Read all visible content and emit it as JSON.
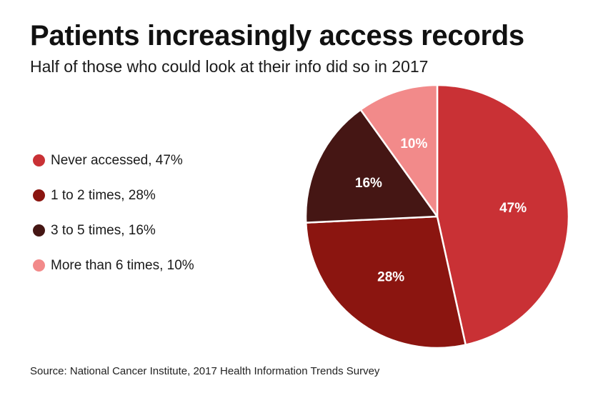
{
  "title": "Patients increasingly access records",
  "subtitle": "Half of those who could look at their info did so in 2017",
  "source": "Source: National Cancer Institute, 2017 Health Information Trends Survey",
  "chart_data": {
    "type": "pie",
    "title": "Patients increasingly access records",
    "subtitle": "Half of those who could look at their info did so in 2017",
    "legend_position": "left",
    "slices": [
      {
        "name": "never-accessed",
        "legend": "Never accessed, 47%",
        "label": "47%",
        "value": 47,
        "color": "#c93135"
      },
      {
        "name": "1-to-2-times",
        "legend": "1 to 2 times, 28%",
        "label": "28%",
        "value": 28,
        "color": "#8b1510"
      },
      {
        "name": "3-to-5-times",
        "legend": "3 to 5 times, 16%",
        "label": "16%",
        "value": 16,
        "color": "#451614"
      },
      {
        "name": "more-than-6-times",
        "legend": "More than 6 times, 10%",
        "label": "10%",
        "value": 10,
        "color": "#f28a8a"
      }
    ]
  }
}
